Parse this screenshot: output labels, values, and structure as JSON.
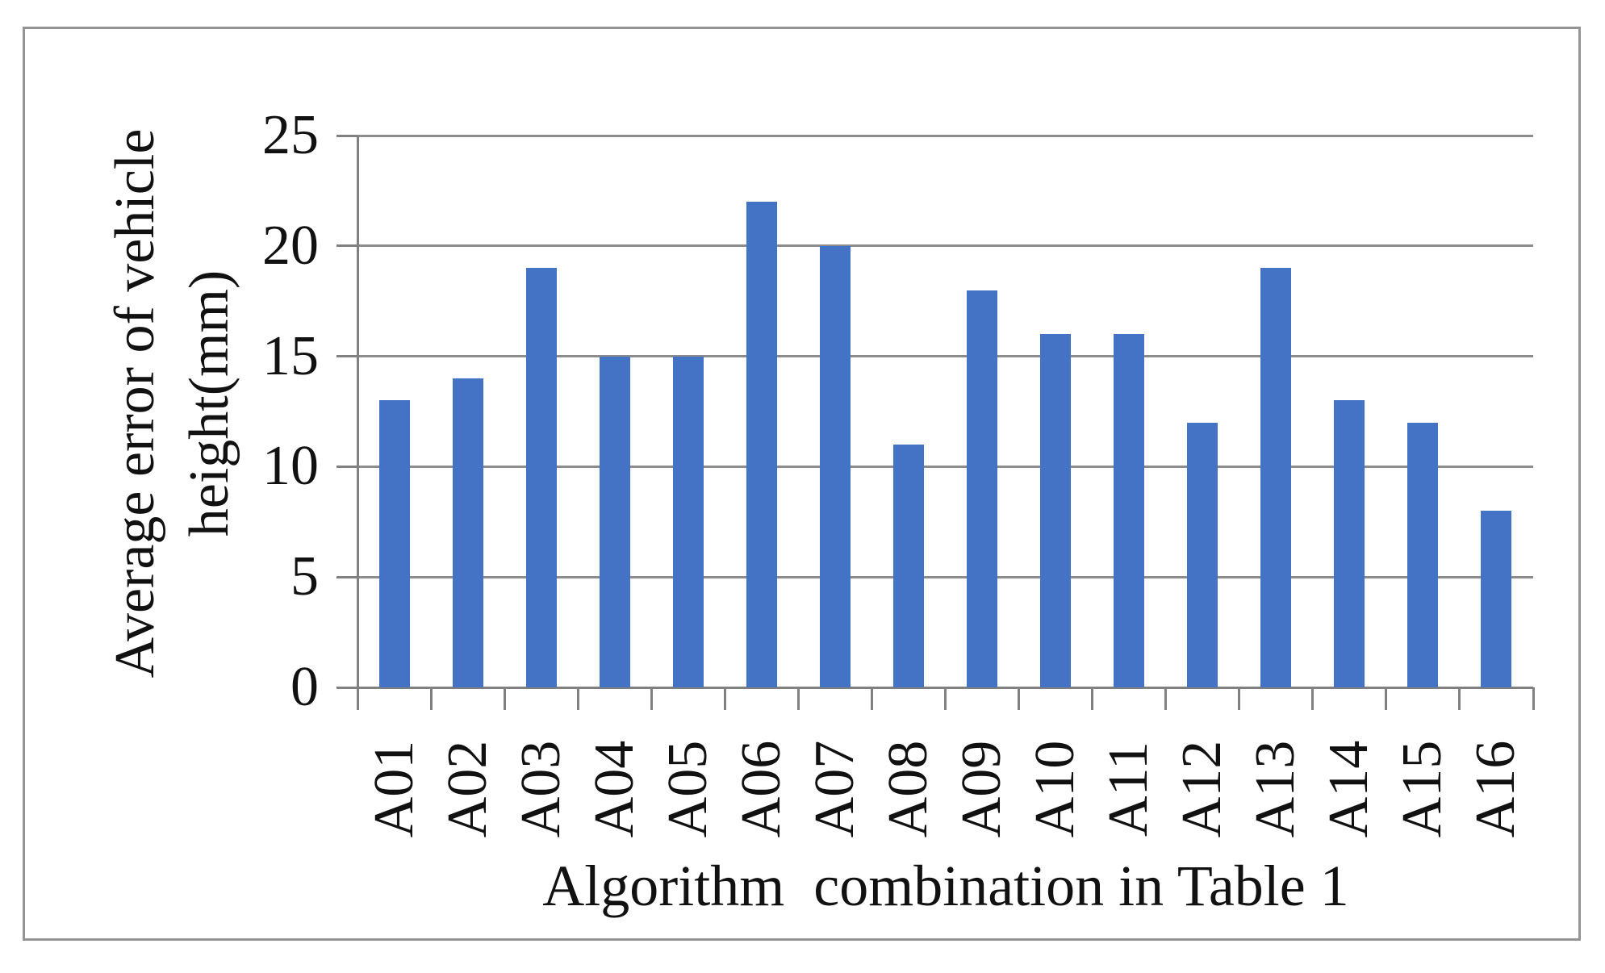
{
  "figure": {
    "frame_border_color": "#949494",
    "background_color": "#ffffff"
  },
  "chart_data": {
    "type": "bar",
    "title": "",
    "categories": [
      "A01",
      "A02",
      "A03",
      "A04",
      "A05",
      "A06",
      "A07",
      "A08",
      "A09",
      "A10",
      "A11",
      "A12",
      "A13",
      "A14",
      "A15",
      "A16"
    ],
    "values": [
      13,
      14,
      19,
      15,
      15,
      22,
      20,
      11,
      18,
      16,
      16,
      12,
      19,
      13,
      12,
      8
    ],
    "xlabel": "Algorithm  combination in Table 1",
    "ylabel_lines": [
      "Average error of vehicle",
      "height(mm)"
    ],
    "ylim": [
      0,
      25
    ],
    "yticks": [
      0,
      5,
      10,
      15,
      20,
      25
    ],
    "grid": "horizontal",
    "legend": "none",
    "bar_color": "#4472C4",
    "grid_color": "#8c8c8c",
    "axis_color": "#808080",
    "text_color": "#111111"
  }
}
